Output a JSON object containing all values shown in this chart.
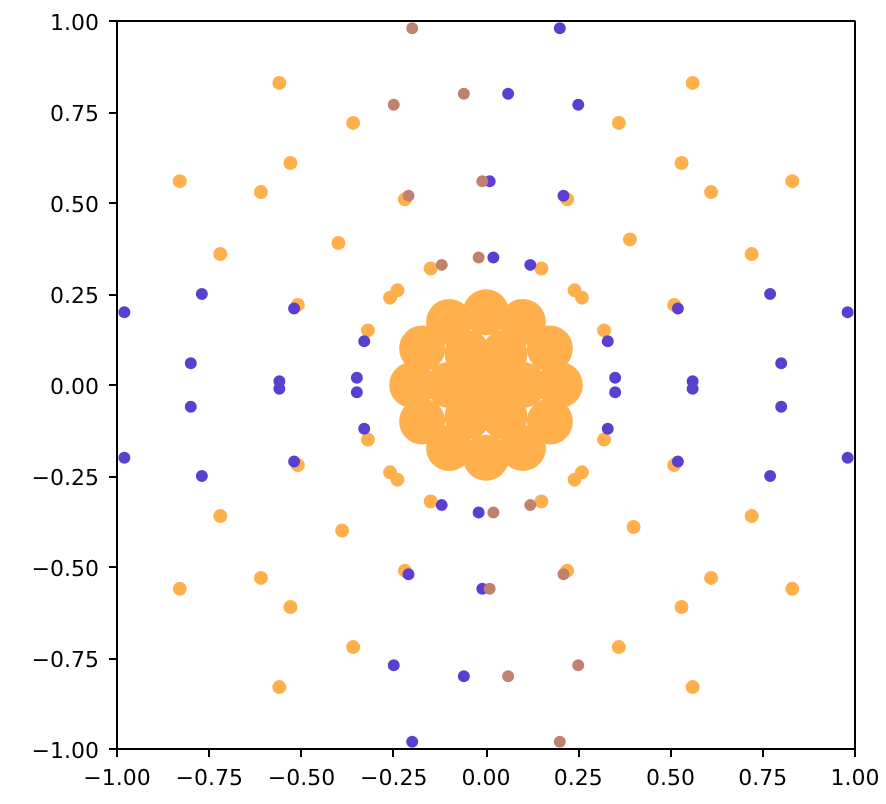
{
  "chart_data": {
    "type": "scatter",
    "marker": "circle",
    "grid": false,
    "xlim": [
      -1,
      1
    ],
    "ylim": [
      -1,
      1
    ],
    "xticks": [
      {
        "value": -1,
        "label": "−1.00"
      },
      {
        "value": -0.75,
        "label": "−0.75"
      },
      {
        "value": -0.5,
        "label": "−0.50"
      },
      {
        "value": -0.25,
        "label": "−0.25"
      },
      {
        "value": 0,
        "label": "0.00"
      },
      {
        "value": 0.25,
        "label": "0.25"
      },
      {
        "value": 0.5,
        "label": "0.50"
      },
      {
        "value": 0.75,
        "label": "0.75"
      },
      {
        "value": 1,
        "label": "1.00"
      }
    ],
    "yticks": [
      {
        "value": -1,
        "label": "−1.00"
      },
      {
        "value": -0.75,
        "label": "−0.75"
      },
      {
        "value": -0.5,
        "label": "−0.50"
      },
      {
        "value": -0.25,
        "label": "−0.25"
      },
      {
        "value": 0,
        "label": "0.00"
      },
      {
        "value": 0.25,
        "label": "0.25"
      },
      {
        "value": 0.5,
        "label": "0.50"
      },
      {
        "value": 0.75,
        "label": "0.75"
      },
      {
        "value": 1,
        "label": "1.00"
      }
    ],
    "series": [
      {
        "color": "#ffb04c",
        "x": [
          0.83,
          0.61,
          0.72,
          0.51,
          0.26,
          0.32,
          0.56,
          0.53,
          0.36,
          0.39,
          0.22,
          0.24,
          0.15,
          -0.56,
          -0.53,
          -0.36,
          -0.22,
          -0.24,
          -0.15,
          -0.83,
          -0.61,
          -0.72,
          -0.4,
          -0.51,
          -0.26,
          -0.32,
          -0.83,
          -0.61,
          -0.72,
          -0.51,
          -0.26,
          -0.32,
          -0.56,
          -0.53,
          -0.36,
          -0.39,
          -0.22,
          -0.24,
          -0.15,
          0.56,
          0.53,
          0.36,
          0.22,
          0.24,
          0.15,
          0.83,
          0.61,
          0.72,
          0.4,
          0.51,
          0.26,
          0.32
        ],
        "values": [
          0.56,
          0.53,
          0.36,
          0.22,
          0.24,
          0.15,
          0.83,
          0.61,
          0.72,
          0.4,
          0.51,
          0.26,
          0.32,
          0.83,
          0.61,
          0.72,
          0.51,
          0.26,
          0.32,
          0.56,
          0.53,
          0.36,
          0.39,
          0.22,
          0.24,
          0.15,
          -0.56,
          -0.53,
          -0.36,
          -0.22,
          -0.24,
          -0.15,
          -0.83,
          -0.61,
          -0.72,
          -0.4,
          -0.51,
          -0.26,
          -0.32,
          -0.83,
          -0.61,
          -0.72,
          -0.51,
          -0.26,
          -0.32,
          -0.56,
          -0.53,
          -0.36,
          -0.39,
          -0.22,
          -0.24,
          -0.15
        ]
      },
      {
        "color": "#5a3fd0",
        "x": [
          0.98,
          0.77,
          0.8,
          0.52,
          0.56,
          0.33,
          0.35,
          0.2,
          0.25,
          0.06,
          0.21,
          0.01,
          0.12,
          0.02,
          -0.98,
          -0.77,
          -0.8,
          -0.52,
          -0.56,
          -0.33,
          -0.35,
          -0.2,
          -0.25,
          -0.06,
          -0.21,
          -0.01,
          -0.12,
          -0.02,
          -0.98,
          -0.77,
          -0.8,
          -0.52,
          -0.56,
          -0.33,
          -0.35,
          0.98,
          0.77,
          0.8,
          0.52,
          0.56,
          0.33,
          0.35
        ],
        "values": [
          0.2,
          0.25,
          0.06,
          0.21,
          0.01,
          0.12,
          0.02,
          0.98,
          0.77,
          0.8,
          0.52,
          0.56,
          0.33,
          0.35,
          0.2,
          0.25,
          0.06,
          0.21,
          0.01,
          0.12,
          0.02,
          -0.98,
          -0.77,
          -0.8,
          -0.52,
          -0.56,
          -0.33,
          -0.35,
          -0.2,
          -0.25,
          -0.06,
          -0.21,
          -0.01,
          -0.12,
          -0.02,
          -0.2,
          -0.25,
          -0.06,
          -0.21,
          -0.01,
          -0.12,
          -0.02
        ]
      },
      {
        "color": "#c0826f",
        "x": [
          -0.2,
          -0.25,
          -0.06,
          -0.21,
          -0.01,
          -0.12,
          -0.02,
          0.2,
          0.25,
          0.06,
          0.21,
          0.01,
          0.12,
          0.02
        ],
        "values": [
          0.98,
          0.77,
          0.8,
          0.52,
          0.56,
          0.33,
          0.35,
          -0.98,
          -0.77,
          -0.8,
          -0.52,
          -0.56,
          -0.33,
          -0.35
        ]
      },
      {
        "color": "#ffb04c",
        "x": [
          0,
          0.1,
          0.05,
          -0.05,
          -0.1,
          -0.05,
          0.05,
          0.2,
          0.173,
          0.1,
          0,
          -0.1,
          -0.173,
          -0.2,
          -0.173,
          -0.1,
          0,
          0.1,
          0.173
        ],
        "values": [
          0,
          0,
          0.087,
          0.087,
          0,
          -0.087,
          -0.087,
          0,
          0.1,
          0.173,
          0.2,
          0.173,
          0.1,
          0,
          -0.1,
          -0.173,
          -0.2,
          -0.173,
          -0.1
        ]
      }
    ]
  }
}
